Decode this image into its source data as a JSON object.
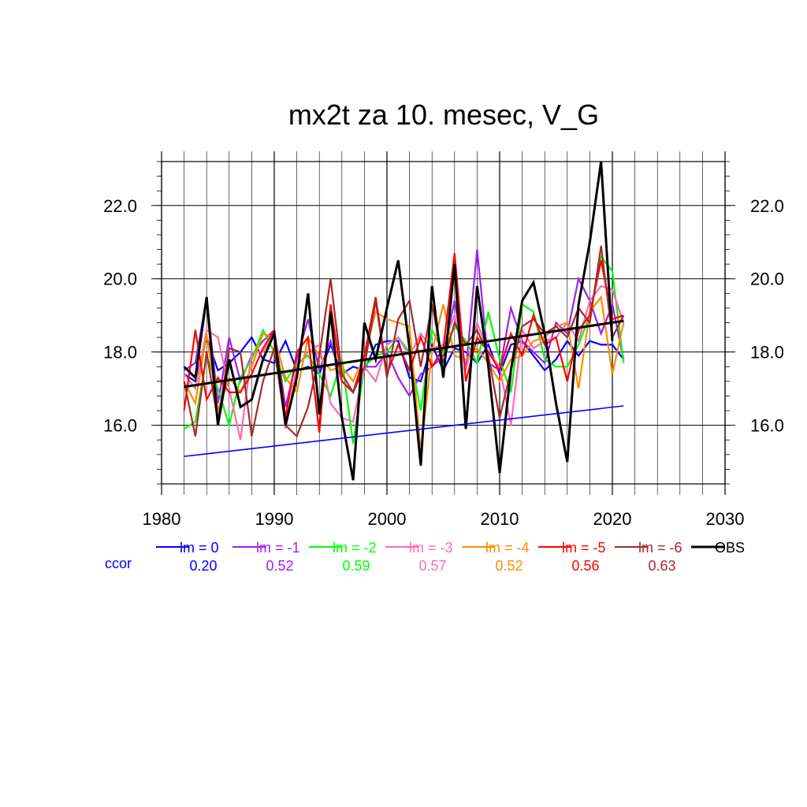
{
  "chart_data": {
    "type": "line",
    "title": "mx2t za 10. mesec, V_G",
    "xlabel": "",
    "ylabel": "",
    "xlim": [
      1980,
      2030
    ],
    "ylim": [
      14.4,
      23.2
    ],
    "x_ticks": [
      "1980",
      "1990",
      "2000",
      "2010",
      "2020",
      "2030"
    ],
    "y_ticks": [
      "16.0",
      "18.0",
      "20.0",
      "22.0"
    ],
    "grid": true,
    "legend_position": "bottom",
    "correlation_label": "ccor",
    "x": [
      1982,
      1983,
      1984,
      1985,
      1986,
      1987,
      1988,
      1989,
      1990,
      1991,
      1992,
      1993,
      1994,
      1995,
      1996,
      1997,
      1998,
      1999,
      2000,
      2001,
      2002,
      2003,
      2004,
      2005,
      2006,
      2007,
      2008,
      2009,
      2010,
      2011,
      2012,
      2013,
      2014,
      2015,
      2016,
      2017,
      2018,
      2019,
      2020,
      2021
    ],
    "series": [
      {
        "name": "lm = 0",
        "color": "#0000ff",
        "ccor": "0.20",
        "values": [
          17.4,
          17.2,
          18.4,
          17.5,
          17.7,
          18.0,
          18.4,
          17.8,
          17.7,
          18.3,
          17.5,
          17.6,
          17.4,
          18.2,
          17.4,
          17.6,
          17.5,
          18.2,
          18.3,
          18.3,
          17.3,
          17.2,
          18.2,
          17.5,
          18.1,
          18.0,
          17.7,
          18.2,
          17.4,
          18.2,
          18.3,
          17.9,
          17.5,
          17.8,
          18.3,
          17.9,
          18.3,
          18.2,
          18.2,
          17.8
        ],
        "trend": [
          15.15,
          16.53
        ]
      },
      {
        "name": "lm = -1",
        "color": "#a020f0",
        "ccor": "0.52",
        "values": [
          17.5,
          17.7,
          19.5,
          16.6,
          18.4,
          17.2,
          17.9,
          18.3,
          18.6,
          16.5,
          17.8,
          18.9,
          17.5,
          18.3,
          17.2,
          16.9,
          17.6,
          17.6,
          18.0,
          17.3,
          16.8,
          17.4,
          17.6,
          17.9,
          19.4,
          17.5,
          20.8,
          17.7,
          17.5,
          19.2,
          18.3,
          18.0,
          17.7,
          18.8,
          18.5,
          20.0,
          19.4,
          18.5,
          19.3,
          17.8
        ]
      },
      {
        "name": "lm = -2",
        "color": "#00ff00",
        "ccor": "0.59",
        "values": [
          15.9,
          16.1,
          17.9,
          17.0,
          16.0,
          17.3,
          17.8,
          18.6,
          18.0,
          17.2,
          17.7,
          17.9,
          17.4,
          16.8,
          17.8,
          15.5,
          17.6,
          17.9,
          18.0,
          18.4,
          18.0,
          16.4,
          18.6,
          18.0,
          18.7,
          18.3,
          17.7,
          19.1,
          17.8,
          16.9,
          19.3,
          19.1,
          17.8,
          17.6,
          17.6,
          18.2,
          19.0,
          20.6,
          20.2,
          17.7
        ]
      },
      {
        "name": "lm = -3",
        "color": "#ff69b4",
        "ccor": "0.57",
        "values": [
          17.4,
          17.0,
          18.6,
          18.4,
          17.0,
          15.6,
          18.0,
          18.0,
          18.5,
          15.9,
          17.6,
          18.0,
          18.2,
          16.6,
          16.2,
          16.1,
          17.6,
          17.2,
          18.2,
          18.4,
          17.9,
          18.5,
          18.1,
          18.2,
          19.0,
          17.5,
          18.8,
          18.0,
          17.6,
          16.0,
          18.6,
          18.1,
          18.3,
          18.4,
          18.8,
          18.3,
          19.4,
          19.8,
          19.7,
          18.8
        ]
      },
      {
        "name": "lm = -4",
        "color": "#ff8c00",
        "ccor": "0.52",
        "values": [
          17.2,
          16.6,
          18.5,
          16.4,
          17.3,
          16.9,
          17.6,
          18.5,
          18.4,
          17.3,
          16.9,
          18.4,
          17.9,
          17.5,
          17.6,
          17.2,
          17.9,
          19.1,
          18.9,
          18.8,
          18.7,
          15.3,
          18.0,
          19.3,
          17.9,
          17.8,
          18.1,
          17.7,
          17.2,
          17.8,
          17.9,
          18.3,
          18.4,
          18.7,
          18.8,
          17.0,
          19.1,
          19.5,
          17.4,
          18.8
        ]
      },
      {
        "name": "lm = -5",
        "color": "#ff0000",
        "ccor": "0.56",
        "values": [
          16.4,
          18.6,
          16.7,
          17.3,
          16.9,
          16.9,
          17.4,
          18.1,
          18.6,
          16.2,
          18.0,
          18.4,
          15.8,
          19.3,
          17.2,
          16.9,
          17.9,
          19.5,
          17.4,
          18.2,
          17.5,
          18.4,
          17.6,
          18.1,
          20.7,
          17.2,
          18.4,
          18.0,
          17.5,
          18.5,
          17.9,
          19.0,
          18.2,
          18.4,
          17.2,
          18.6,
          19.0,
          20.5,
          18.9,
          19.0
        ]
      },
      {
        "name": "lm = -6",
        "color": "#a52a2a",
        "ccor": "0.63",
        "values": [
          17.2,
          15.7,
          18.0,
          16.1,
          18.1,
          18.0,
          15.7,
          17.2,
          18.1,
          16.0,
          15.7,
          16.5,
          17.9,
          20.0,
          17.4,
          16.9,
          17.6,
          19.4,
          17.3,
          18.9,
          19.4,
          17.6,
          19.3,
          17.7,
          18.8,
          18.2,
          18.6,
          17.9,
          16.2,
          17.5,
          18.7,
          18.9,
          18.5,
          18.7,
          18.4,
          19.2,
          18.8,
          20.9,
          18.4,
          19.0
        ]
      },
      {
        "name": "OBS",
        "color": "#000000",
        "ccor": "",
        "values": [
          17.6,
          17.3,
          19.5,
          16.0,
          17.8,
          16.5,
          16.7,
          17.8,
          18.5,
          16.0,
          17.3,
          19.6,
          16.3,
          19.1,
          16.2,
          14.5,
          18.8,
          17.8,
          19.2,
          20.5,
          18.1,
          14.9,
          19.8,
          17.3,
          20.4,
          15.9,
          19.8,
          17.6,
          14.7,
          17.5,
          19.4,
          19.9,
          18.5,
          16.6,
          15.0,
          19.3,
          21.0,
          23.2,
          18.3,
          null
        ],
        "trend": [
          17.05,
          18.85
        ]
      }
    ]
  }
}
